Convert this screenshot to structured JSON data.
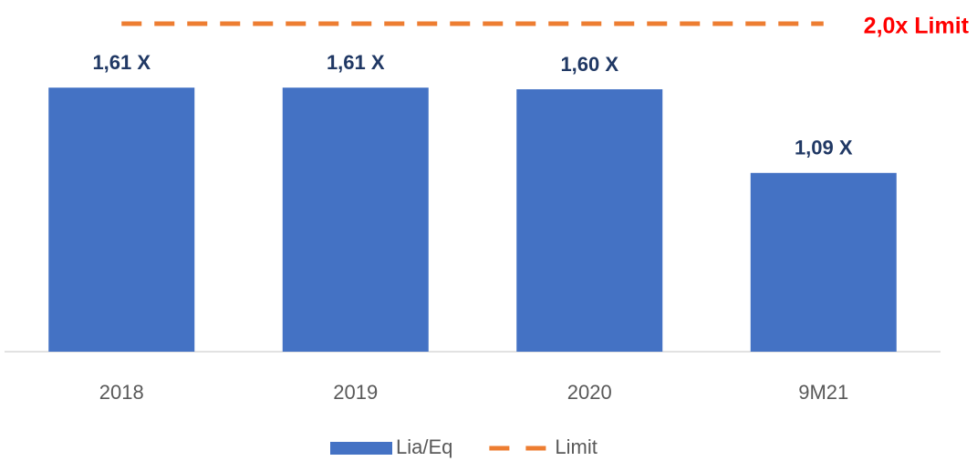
{
  "chart_data": {
    "type": "bar",
    "categories": [
      "2018",
      "2019",
      "2020",
      "9M21"
    ],
    "series": [
      {
        "name": "Lia/Eq",
        "color": "#4472c4",
        "values": [
          1.61,
          1.61,
          1.6,
          1.09
        ],
        "value_labels": [
          "1,61 X",
          "1,61 X",
          "1,60 X",
          "1,09 X"
        ]
      },
      {
        "name": "Limit",
        "color": "#ed7d31",
        "type": "line",
        "dashed": true,
        "values": [
          2.0,
          2.0,
          2.0,
          2.0
        ]
      }
    ],
    "annotations": [
      "2,0x Limit"
    ],
    "ylim": [
      0,
      2.0
    ],
    "legend": "bottom"
  }
}
